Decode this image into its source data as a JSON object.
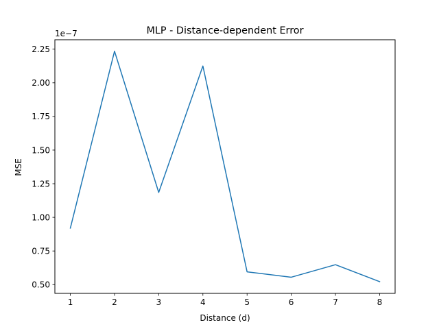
{
  "chart_data": {
    "type": "line",
    "title": "MLP - Distance-dependent Error",
    "xlabel": "Distance (d)",
    "ylabel": "MSE",
    "offset_text": "1e−7",
    "x": [
      1,
      2,
      3,
      4,
      5,
      6,
      7,
      8
    ],
    "series": [
      {
        "values": [
          9.2e-08,
          2.235e-07,
          1.185e-07,
          2.125e-07,
          5.95e-08,
          5.55e-08,
          6.48e-08,
          5.22e-08
        ],
        "color": "#1f77b4"
      }
    ],
    "xlim": [
      0.65,
      8.35
    ],
    "ylim": [
      4.35e-08,
      2.32e-07
    ],
    "xticks": [
      1,
      2,
      3,
      4,
      5,
      6,
      7,
      8
    ],
    "xtick_labels": [
      "1",
      "2",
      "3",
      "4",
      "5",
      "6",
      "7",
      "8"
    ],
    "yticks": [
      5e-08,
      7.5e-08,
      1e-07,
      1.25e-07,
      1.5e-07,
      1.75e-07,
      2e-07,
      2.25e-07
    ],
    "ytick_labels": [
      "0.50",
      "0.75",
      "1.00",
      "1.25",
      "1.50",
      "1.75",
      "2.00",
      "2.25"
    ],
    "grid": false,
    "legend": false
  }
}
